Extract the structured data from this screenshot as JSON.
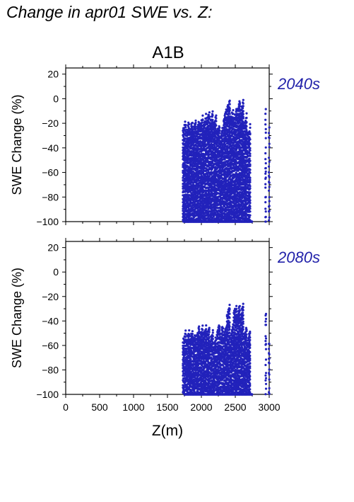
{
  "page": {
    "title": "Change in apr01 SWE vs. Z:"
  },
  "colors": {
    "points": "#2222bb",
    "period_label": "#2222aa"
  },
  "chart_data": [
    {
      "type": "scatter",
      "title": "A1B",
      "period_label": "2040s",
      "ylabel": "SWE Change (%)",
      "xlabel": "",
      "xlim": [
        0,
        3000
      ],
      "ylim": [
        -100,
        25
      ],
      "xticks": [
        0,
        500,
        1000,
        1500,
        2000,
        2500,
        3000
      ],
      "yticks": [
        20,
        0,
        -20,
        -40,
        -60,
        -80,
        -100
      ],
      "ytick_labels": [
        "20",
        "0",
        "−20",
        "−40",
        "−60",
        "−80",
        "−100"
      ],
      "show_xtick_labels": false,
      "points_x_range": [
        1750,
        3000
      ],
      "points_y_range": [
        -100,
        -8
      ],
      "marker": "dot",
      "note_columns": [
        1750,
        1800,
        1850,
        1900,
        1950,
        2000,
        2050,
        2100,
        2150,
        2200,
        2250,
        2300,
        2350,
        2400,
        2450,
        2500,
        2550,
        2600,
        2650,
        2700,
        2950,
        3000
      ],
      "column_tops": [
        -25,
        -25,
        -25,
        -25,
        -25,
        -20,
        -20,
        -17,
        -17,
        -20,
        -27,
        -30,
        -15,
        -8,
        -15,
        -15,
        -8,
        -8,
        -20,
        -28,
        -8,
        -22
      ]
    },
    {
      "type": "scatter",
      "title": "",
      "period_label": "2080s",
      "ylabel": "SWE Change (%)",
      "xlabel": "Z(m)",
      "xlim": [
        0,
        3000
      ],
      "ylim": [
        -100,
        25
      ],
      "xticks": [
        0,
        500,
        1000,
        1500,
        2000,
        2500,
        3000
      ],
      "xtick_labels": [
        "0",
        "500",
        "1000",
        "1500",
        "2000",
        "2500",
        "3000"
      ],
      "yticks": [
        20,
        0,
        -20,
        -40,
        -60,
        -80,
        -100
      ],
      "ytick_labels": [
        "20",
        "0",
        "−20",
        "−40",
        "−60",
        "−80",
        "−100"
      ],
      "show_xtick_labels": true,
      "points_x_range": [
        1750,
        3000
      ],
      "points_y_range": [
        -100,
        -33
      ],
      "marker": "dot",
      "note_columns": [
        1750,
        1800,
        1850,
        1900,
        1950,
        2000,
        2050,
        2100,
        2150,
        2200,
        2250,
        2300,
        2350,
        2400,
        2450,
        2500,
        2550,
        2600,
        2650,
        2700,
        2950,
        3000
      ],
      "column_tops": [
        -55,
        -55,
        -55,
        -55,
        -50,
        -50,
        -50,
        -50,
        -55,
        -60,
        -50,
        -50,
        -50,
        -33,
        -50,
        -33,
        -33,
        -33,
        -50,
        -55,
        -33,
        -55
      ]
    }
  ]
}
